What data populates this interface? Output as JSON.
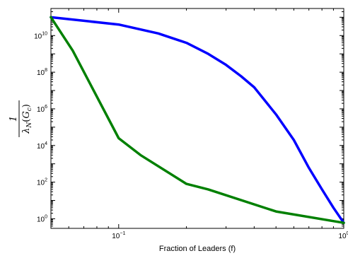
{
  "chart_data": {
    "type": "line",
    "title": "",
    "xlabel": "Fraction of Leaders (f)",
    "ylabel_numerator": "1",
    "ylabel_denominator": {
      "lambda": "λ",
      "subscript_n": "N",
      "open_paren": "(",
      "g": "G",
      "subscript_c": "c",
      "close_paren": ")"
    },
    "x_scale": "log",
    "y_scale": "log",
    "xlim": [
      0.05,
      1
    ],
    "ylim": [
      0.3,
      300000000000
    ],
    "grid": false,
    "legend": "none",
    "x_ticks": [
      {
        "value": 0.1,
        "base": "10",
        "exp": "−1"
      },
      {
        "value": 1,
        "base": "10",
        "exp": "0"
      }
    ],
    "y_ticks": [
      {
        "value": 1,
        "base": "10",
        "exp": "0"
      },
      {
        "value": 100,
        "base": "10",
        "exp": "2"
      },
      {
        "value": 10000,
        "base": "10",
        "exp": "4"
      },
      {
        "value": 1000000,
        "base": "10",
        "exp": "6"
      },
      {
        "value": 100000000,
        "base": "10",
        "exp": "8"
      },
      {
        "value": 10000000000,
        "base": "10",
        "exp": "10"
      }
    ],
    "series": [
      {
        "color": "#0000ff",
        "points": [
          [
            0.05,
            100000000000
          ],
          [
            0.1,
            40000000000
          ],
          [
            0.15,
            13000000000
          ],
          [
            0.2,
            4000000000
          ],
          [
            0.25,
            1000000000
          ],
          [
            0.3,
            250000000
          ],
          [
            0.35,
            60000000
          ],
          [
            0.4,
            15000000
          ],
          [
            0.5,
            500000
          ],
          [
            0.6,
            20000
          ],
          [
            0.7,
            600
          ],
          [
            0.8,
            40
          ],
          [
            0.9,
            4
          ],
          [
            1.0,
            0.6
          ]
        ]
      },
      {
        "color": "#008000",
        "points": [
          [
            0.05,
            100000000000
          ],
          [
            0.0625,
            1500000000
          ],
          [
            0.1,
            25000
          ],
          [
            0.125,
            3000
          ],
          [
            0.2,
            80
          ],
          [
            0.25,
            40
          ],
          [
            0.5,
            2.5
          ],
          [
            1.0,
            0.6
          ]
        ]
      }
    ]
  }
}
